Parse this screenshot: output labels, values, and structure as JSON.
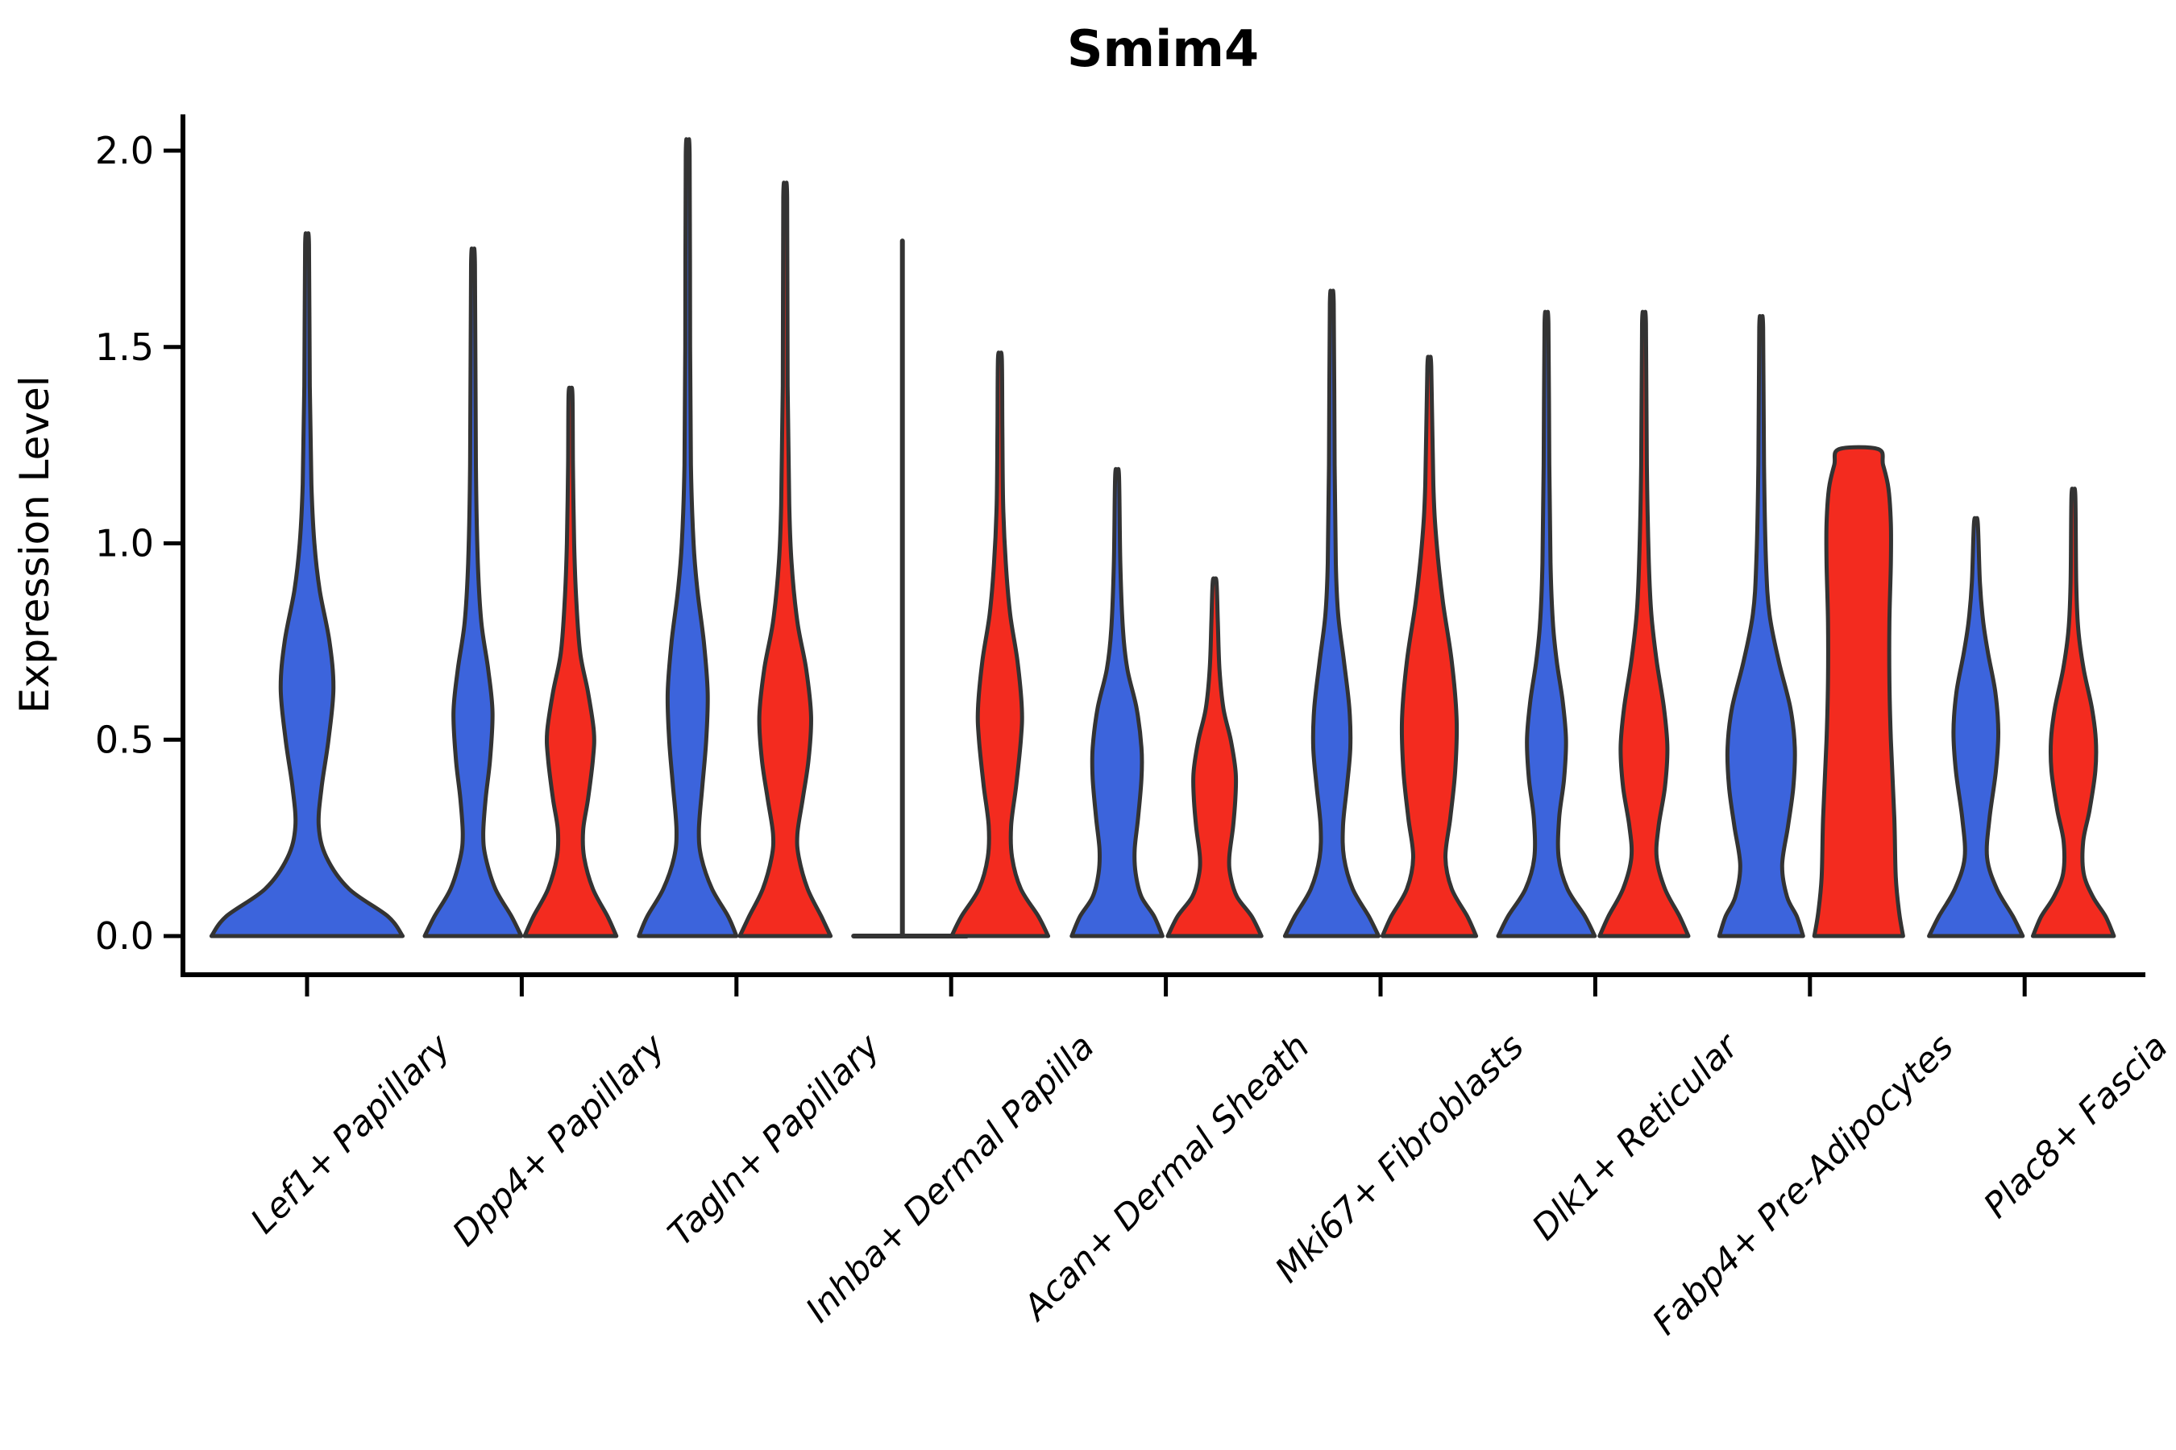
{
  "chart_data": {
    "type": "violin",
    "title": "Smim4",
    "ylabel": "Expression Level",
    "xlabel": "",
    "ylim": [
      -0.09,
      2.09
    ],
    "grid": false,
    "legend": "none",
    "x_tick_rotation_deg": 45,
    "y_ticks": [
      {
        "label": "0.0",
        "value": 0.0
      },
      {
        "label": "0.5",
        "value": 0.5
      },
      {
        "label": "1.0",
        "value": 1.0
      },
      {
        "label": "1.5",
        "value": 1.5
      },
      {
        "label": "2.0",
        "value": 2.0
      }
    ],
    "categories": [
      "Lef1+ Papillary",
      "Dpp4+ Papillary",
      "Tagln+ Papillary",
      "Inhba+ Dermal Papilla",
      "Acan+ Dermal Sheath",
      "Mki67+ Fibroblasts",
      "Dlk1+ Reticular",
      "Fabp4+ Pre-Adipocytes",
      "Plac8+ Fascia"
    ],
    "group_colors": {
      "blue": "#3C64DC",
      "red": "#F32B1F",
      "outline": "#333333"
    },
    "violins": [
      {
        "category": "Lef1+ Papillary",
        "group": "blue",
        "placement": "center",
        "peak_value": 1.76,
        "profile": [
          [
            0,
            0.98
          ],
          [
            0.05,
            0.83
          ],
          [
            0.12,
            0.43
          ],
          [
            0.2,
            0.2
          ],
          [
            0.28,
            0.12
          ],
          [
            0.38,
            0.15
          ],
          [
            0.5,
            0.22
          ],
          [
            0.63,
            0.27
          ],
          [
            0.75,
            0.23
          ],
          [
            0.88,
            0.13
          ],
          [
            1.0,
            0.075
          ],
          [
            1.15,
            0.045
          ],
          [
            1.4,
            0.028
          ],
          [
            1.76,
            0.02
          ]
        ]
      },
      {
        "category": "Dpp4+ Papillary",
        "group": "blue",
        "placement": "left",
        "peak_value": 1.71,
        "profile": [
          [
            0,
            0.99
          ],
          [
            0.05,
            0.79
          ],
          [
            0.12,
            0.46
          ],
          [
            0.2,
            0.26
          ],
          [
            0.26,
            0.21
          ],
          [
            0.35,
            0.26
          ],
          [
            0.45,
            0.35
          ],
          [
            0.57,
            0.4
          ],
          [
            0.68,
            0.31
          ],
          [
            0.8,
            0.17
          ],
          [
            0.95,
            0.1
          ],
          [
            1.2,
            0.06
          ],
          [
            1.71,
            0.04
          ]
        ]
      },
      {
        "category": "Dpp4+ Papillary",
        "group": "red",
        "placement": "right",
        "peak_value": 1.38,
        "profile": [
          [
            0,
            0.94
          ],
          [
            0.05,
            0.76
          ],
          [
            0.12,
            0.46
          ],
          [
            0.2,
            0.28
          ],
          [
            0.27,
            0.26
          ],
          [
            0.35,
            0.36
          ],
          [
            0.45,
            0.46
          ],
          [
            0.52,
            0.48
          ],
          [
            0.62,
            0.36
          ],
          [
            0.72,
            0.2
          ],
          [
            0.85,
            0.12
          ],
          [
            1.0,
            0.075
          ],
          [
            1.2,
            0.05
          ],
          [
            1.38,
            0.04
          ]
        ]
      },
      {
        "category": "Tagln+ Papillary",
        "group": "blue",
        "placement": "left",
        "peak_value": 1.99,
        "profile": [
          [
            0,
            1.0
          ],
          [
            0.05,
            0.83
          ],
          [
            0.12,
            0.5
          ],
          [
            0.2,
            0.28
          ],
          [
            0.27,
            0.23
          ],
          [
            0.38,
            0.3
          ],
          [
            0.5,
            0.38
          ],
          [
            0.62,
            0.41
          ],
          [
            0.75,
            0.33
          ],
          [
            0.88,
            0.2
          ],
          [
            1.0,
            0.12
          ],
          [
            1.2,
            0.066
          ],
          [
            1.5,
            0.05
          ],
          [
            1.99,
            0.04
          ]
        ]
      },
      {
        "category": "Tagln+ Papillary",
        "group": "red",
        "placement": "right",
        "peak_value": 1.88,
        "profile": [
          [
            0,
            0.93
          ],
          [
            0.05,
            0.74
          ],
          [
            0.12,
            0.46
          ],
          [
            0.2,
            0.28
          ],
          [
            0.26,
            0.25
          ],
          [
            0.35,
            0.36
          ],
          [
            0.45,
            0.48
          ],
          [
            0.56,
            0.53
          ],
          [
            0.68,
            0.43
          ],
          [
            0.8,
            0.25
          ],
          [
            0.95,
            0.13
          ],
          [
            1.1,
            0.083
          ],
          [
            1.4,
            0.05
          ],
          [
            1.88,
            0.04
          ]
        ]
      },
      {
        "category": "Inhba+ Dermal Papilla",
        "group": "blue",
        "placement": "left",
        "peak_value": 1.77,
        "degenerate": true,
        "base_extent": [
          -1,
          1.32
        ],
        "profile": []
      },
      {
        "category": "Inhba+ Dermal Papilla",
        "group": "red",
        "placement": "right",
        "peak_value": 1.47,
        "profile": [
          [
            0,
            0.99
          ],
          [
            0.05,
            0.79
          ],
          [
            0.12,
            0.43
          ],
          [
            0.2,
            0.25
          ],
          [
            0.28,
            0.23
          ],
          [
            0.38,
            0.33
          ],
          [
            0.5,
            0.43
          ],
          [
            0.58,
            0.45
          ],
          [
            0.7,
            0.36
          ],
          [
            0.82,
            0.21
          ],
          [
            0.95,
            0.12
          ],
          [
            1.1,
            0.066
          ],
          [
            1.3,
            0.05
          ],
          [
            1.47,
            0.04
          ]
        ]
      },
      {
        "category": "Acan+ Dermal Sheath",
        "group": "blue",
        "placement": "left",
        "peak_value": 1.17,
        "profile": [
          [
            0,
            0.93
          ],
          [
            0.05,
            0.76
          ],
          [
            0.1,
            0.5
          ],
          [
            0.16,
            0.38
          ],
          [
            0.22,
            0.36
          ],
          [
            0.3,
            0.43
          ],
          [
            0.4,
            0.5
          ],
          [
            0.48,
            0.5
          ],
          [
            0.58,
            0.4
          ],
          [
            0.68,
            0.21
          ],
          [
            0.78,
            0.12
          ],
          [
            0.95,
            0.066
          ],
          [
            1.17,
            0.04
          ]
        ]
      },
      {
        "category": "Acan+ Dermal Sheath",
        "group": "red",
        "placement": "right",
        "peak_value": 0.9,
        "profile": [
          [
            0,
            0.96
          ],
          [
            0.05,
            0.76
          ],
          [
            0.1,
            0.46
          ],
          [
            0.15,
            0.33
          ],
          [
            0.2,
            0.3
          ],
          [
            0.28,
            0.38
          ],
          [
            0.36,
            0.43
          ],
          [
            0.42,
            0.43
          ],
          [
            0.5,
            0.33
          ],
          [
            0.58,
            0.18
          ],
          [
            0.68,
            0.1
          ],
          [
            0.8,
            0.066
          ],
          [
            0.9,
            0.04
          ]
        ]
      },
      {
        "category": "Mki67+ Fibroblasts",
        "group": "blue",
        "placement": "left",
        "peak_value": 1.61,
        "profile": [
          [
            0,
            0.96
          ],
          [
            0.05,
            0.76
          ],
          [
            0.12,
            0.43
          ],
          [
            0.2,
            0.25
          ],
          [
            0.28,
            0.23
          ],
          [
            0.38,
            0.31
          ],
          [
            0.48,
            0.38
          ],
          [
            0.58,
            0.36
          ],
          [
            0.7,
            0.25
          ],
          [
            0.82,
            0.13
          ],
          [
            0.95,
            0.083
          ],
          [
            1.2,
            0.058
          ],
          [
            1.61,
            0.04
          ]
        ]
      },
      {
        "category": "Mki67+ Fibroblasts",
        "group": "red",
        "placement": "right",
        "peak_value": 1.45,
        "profile": [
          [
            0,
            0.96
          ],
          [
            0.05,
            0.78
          ],
          [
            0.12,
            0.46
          ],
          [
            0.2,
            0.33
          ],
          [
            0.3,
            0.43
          ],
          [
            0.42,
            0.53
          ],
          [
            0.55,
            0.56
          ],
          [
            0.7,
            0.46
          ],
          [
            0.85,
            0.28
          ],
          [
            1.0,
            0.15
          ],
          [
            1.15,
            0.083
          ],
          [
            1.45,
            0.04
          ]
        ]
      },
      {
        "category": "Dlk1+ Reticular",
        "group": "blue",
        "placement": "left",
        "peak_value": 1.56,
        "profile": [
          [
            0,
            0.99
          ],
          [
            0.05,
            0.79
          ],
          [
            0.12,
            0.43
          ],
          [
            0.2,
            0.25
          ],
          [
            0.3,
            0.26
          ],
          [
            0.4,
            0.36
          ],
          [
            0.5,
            0.4
          ],
          [
            0.6,
            0.33
          ],
          [
            0.7,
            0.21
          ],
          [
            0.8,
            0.13
          ],
          [
            0.95,
            0.083
          ],
          [
            1.2,
            0.058
          ],
          [
            1.56,
            0.04
          ]
        ]
      },
      {
        "category": "Dlk1+ Reticular",
        "group": "red",
        "placement": "right",
        "peak_value": 1.56,
        "profile": [
          [
            0,
            0.91
          ],
          [
            0.05,
            0.73
          ],
          [
            0.12,
            0.43
          ],
          [
            0.2,
            0.26
          ],
          [
            0.28,
            0.3
          ],
          [
            0.38,
            0.43
          ],
          [
            0.48,
            0.48
          ],
          [
            0.58,
            0.41
          ],
          [
            0.7,
            0.26
          ],
          [
            0.82,
            0.15
          ],
          [
            0.95,
            0.1
          ],
          [
            1.2,
            0.058
          ],
          [
            1.56,
            0.04
          ]
        ]
      },
      {
        "category": "Fabp4+ Pre-Adipocytes",
        "group": "blue",
        "placement": "left",
        "peak_value": 1.55,
        "profile": [
          [
            0,
            0.86
          ],
          [
            0.05,
            0.73
          ],
          [
            0.1,
            0.53
          ],
          [
            0.18,
            0.43
          ],
          [
            0.28,
            0.55
          ],
          [
            0.38,
            0.66
          ],
          [
            0.48,
            0.69
          ],
          [
            0.58,
            0.6
          ],
          [
            0.7,
            0.36
          ],
          [
            0.82,
            0.17
          ],
          [
            0.95,
            0.1
          ],
          [
            1.2,
            0.058
          ],
          [
            1.55,
            0.04
          ]
        ]
      },
      {
        "category": "Fabp4+ Pre-Adipocytes",
        "group": "red",
        "placement": "right",
        "peak_value": 1.24,
        "flat_top": true,
        "profile": [
          [
            0,
            0.91
          ],
          [
            0.06,
            0.83
          ],
          [
            0.15,
            0.76
          ],
          [
            0.3,
            0.73
          ],
          [
            0.5,
            0.66
          ],
          [
            0.65,
            0.63
          ],
          [
            0.8,
            0.63
          ],
          [
            0.95,
            0.66
          ],
          [
            1.05,
            0.66
          ],
          [
            1.14,
            0.61
          ],
          [
            1.2,
            0.5
          ],
          [
            1.24,
            0.4
          ]
        ]
      },
      {
        "category": "Plac8+ Fascia",
        "group": "blue",
        "placement": "left",
        "peak_value": 1.05,
        "profile": [
          [
            0,
            0.96
          ],
          [
            0.05,
            0.76
          ],
          [
            0.12,
            0.43
          ],
          [
            0.2,
            0.23
          ],
          [
            0.3,
            0.28
          ],
          [
            0.42,
            0.41
          ],
          [
            0.52,
            0.46
          ],
          [
            0.62,
            0.4
          ],
          [
            0.72,
            0.25
          ],
          [
            0.8,
            0.15
          ],
          [
            0.9,
            0.083
          ],
          [
            1.05,
            0.04
          ]
        ]
      },
      {
        "category": "Plac8+ Fascia",
        "group": "red",
        "placement": "right",
        "peak_value": 1.12,
        "profile": [
          [
            0,
            0.83
          ],
          [
            0.05,
            0.66
          ],
          [
            0.1,
            0.4
          ],
          [
            0.16,
            0.21
          ],
          [
            0.24,
            0.2
          ],
          [
            0.32,
            0.33
          ],
          [
            0.42,
            0.45
          ],
          [
            0.5,
            0.46
          ],
          [
            0.58,
            0.38
          ],
          [
            0.68,
            0.21
          ],
          [
            0.78,
            0.1
          ],
          [
            0.9,
            0.058
          ],
          [
            1.12,
            0.04
          ]
        ]
      }
    ]
  }
}
